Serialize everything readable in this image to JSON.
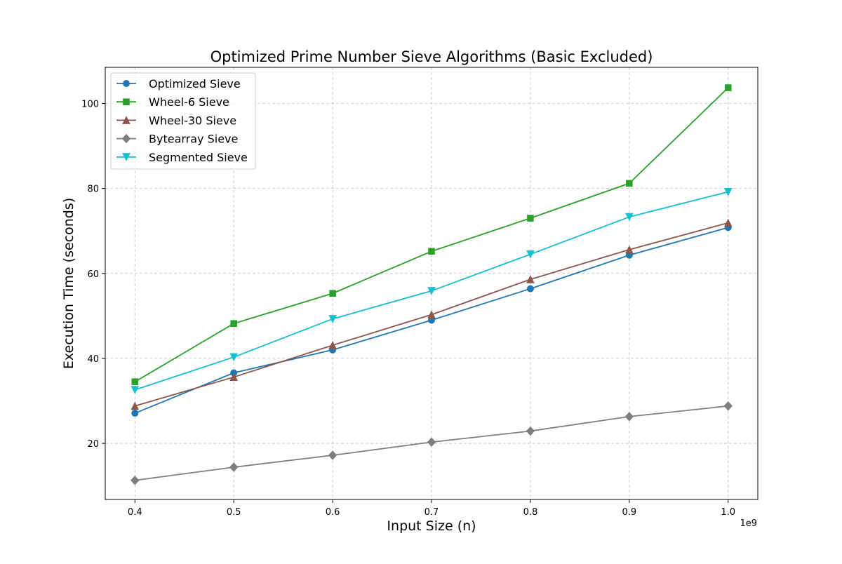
{
  "chart_data": {
    "type": "line",
    "title": "Optimized Prime Number Sieve Algorithms (Basic Excluded)",
    "xlabel": "Input Size (n)",
    "ylabel": "Execution Time (seconds)",
    "x_offset_label": "1e9",
    "x": [
      0.4,
      0.5,
      0.6,
      0.7,
      0.8,
      0.9,
      1.0
    ],
    "x_tick_labels": [
      "0.4",
      "0.5",
      "0.6",
      "0.7",
      "0.8",
      "0.9",
      "1.0"
    ],
    "y_ticks": [
      20,
      40,
      60,
      80,
      100
    ],
    "y_tick_labels": [
      "20",
      "40",
      "60",
      "80",
      "100"
    ],
    "xlim": [
      0.37,
      1.03
    ],
    "ylim": [
      6.8,
      108.5
    ],
    "grid": true,
    "legend_position": "top-left",
    "series": [
      {
        "name": "Optimized Sieve",
        "color": "#1f77b4",
        "marker": "circle",
        "values": [
          27.1,
          36.6,
          42.0,
          49.0,
          56.4,
          64.3,
          70.8
        ]
      },
      {
        "name": "Wheel-6 Sieve",
        "color": "#2ca02c",
        "marker": "square",
        "values": [
          34.5,
          48.2,
          55.3,
          65.2,
          73.0,
          81.2,
          103.7
        ]
      },
      {
        "name": "Wheel-30 Sieve",
        "color": "#8c564b",
        "marker": "triangle-up",
        "values": [
          28.8,
          35.6,
          43.1,
          50.3,
          58.6,
          65.6,
          71.9
        ]
      },
      {
        "name": "Bytearray Sieve",
        "color": "#7f7f7f",
        "marker": "diamond",
        "values": [
          11.3,
          14.4,
          17.2,
          20.3,
          22.9,
          26.3,
          28.8
        ]
      },
      {
        "name": "Segmented Sieve",
        "color": "#17becf",
        "marker": "triangle-down",
        "values": [
          32.6,
          40.3,
          49.3,
          55.9,
          64.5,
          73.3,
          79.2
        ]
      }
    ]
  }
}
